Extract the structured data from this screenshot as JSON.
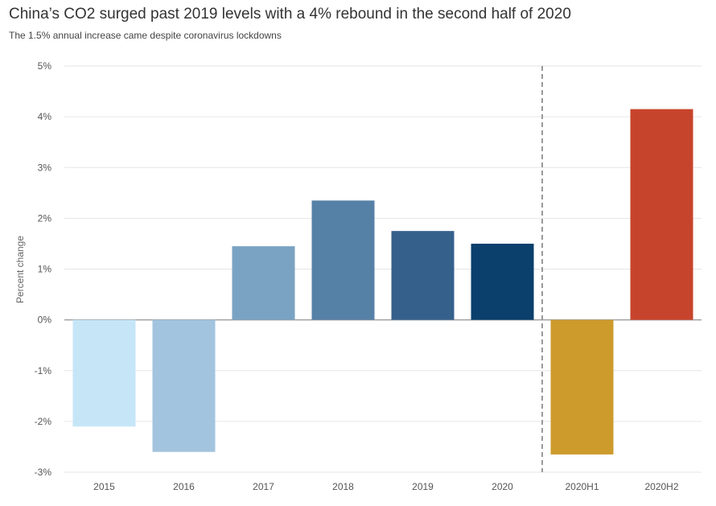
{
  "chart_data": {
    "type": "bar",
    "title": "China’s CO2 surged past 2019 levels with a 4% rebound in the second half of 2020",
    "subtitle": "The 1.5% annual increase came despite coronavirus lockdowns",
    "xlabel": "",
    "ylabel": "Percent change",
    "ylim": [
      -3,
      5
    ],
    "yticks": [
      5,
      4,
      3,
      2,
      1,
      0,
      -1,
      -2,
      -3
    ],
    "ytick_labels": [
      "5%",
      "4%",
      "3%",
      "2%",
      "1%",
      "0%",
      "-1%",
      "-2%",
      "-3%"
    ],
    "categories": [
      "2015",
      "2016",
      "2017",
      "2018",
      "2019",
      "2020",
      "2020H1",
      "2020H2"
    ],
    "values": [
      -2.1,
      -2.6,
      1.45,
      2.35,
      1.75,
      1.5,
      -2.65,
      4.15
    ],
    "colors": [
      "#c6e6f8",
      "#a3c4de",
      "#7aa3c3",
      "#5681a7",
      "#35608c",
      "#0b3f6c",
      "#cd9a2c",
      "#c7442c"
    ],
    "grid": true,
    "divider_after_category": "2020"
  }
}
